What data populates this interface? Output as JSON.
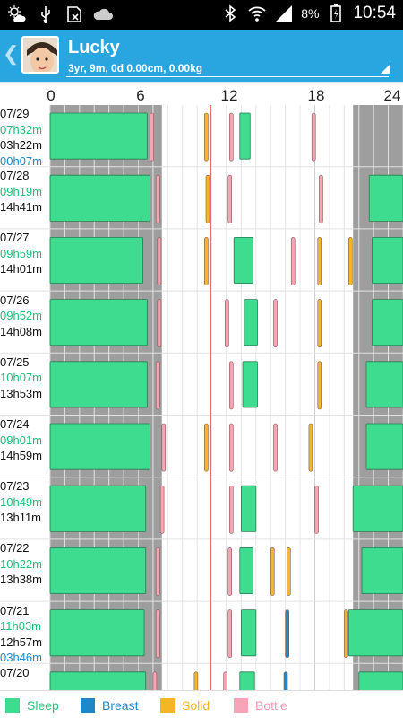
{
  "status_bar": {
    "battery_percent": "8%",
    "time": "10:54",
    "icons": [
      "weather-icon",
      "usb-icon",
      "sim-blocked-icon",
      "cloud-icon",
      "bluetooth-icon",
      "wifi-icon",
      "signal-icon",
      "battery-charging-icon"
    ]
  },
  "header": {
    "name": "Lucky",
    "details": "3yr, 9m, 0d 0.00cm, 0.00kg",
    "color": "#29a6e0"
  },
  "axis": {
    "ticks": [
      "0",
      "6",
      "12",
      "18",
      "24"
    ]
  },
  "colors": {
    "sleep": "#3ddc8e",
    "breast": "#1e88c7",
    "solid": "#f4b624",
    "bottle": "#f7a3b8",
    "night_shade": "#9e9e9e"
  },
  "legend": [
    {
      "label": "Sleep",
      "color": "#3ddc8e",
      "text_color": "#2fbf7a"
    },
    {
      "label": "Breast",
      "color": "#1e88c7",
      "text_color": "#1e88c7"
    },
    {
      "label": "Solid",
      "color": "#f4b624",
      "text_color": "#f4b624"
    },
    {
      "label": "Bottle",
      "color": "#f7a3b8",
      "text_color": "#f59ab0"
    }
  ],
  "days": [
    {
      "date": "07/29",
      "sleep_total": "07h32m",
      "mid": "03h22m",
      "breast_total": "00h07m",
      "events": [
        {
          "type": "sleep",
          "start": 0,
          "end": 6.6
        },
        {
          "type": "bottle",
          "start": 6.8,
          "end": 7.0
        },
        {
          "type": "solid",
          "start": 10.5,
          "end": 10.7
        },
        {
          "type": "bottle",
          "start": 12.2,
          "end": 12.4
        },
        {
          "type": "sleep",
          "start": 12.9,
          "end": 13.6
        },
        {
          "type": "bottle",
          "start": 17.8,
          "end": 18.0
        }
      ]
    },
    {
      "date": "07/28",
      "sleep_total": "09h19m",
      "mid": "14h41m",
      "breast_total": "",
      "events": [
        {
          "type": "sleep",
          "start": 0,
          "end": 6.8
        },
        {
          "type": "bottle",
          "start": 7.2,
          "end": 7.4
        },
        {
          "type": "solid",
          "start": 10.6,
          "end": 10.8
        },
        {
          "type": "bottle",
          "start": 12.1,
          "end": 12.3
        },
        {
          "type": "bottle",
          "start": 18.3,
          "end": 18.5
        },
        {
          "type": "sleep",
          "start": 21.7,
          "end": 24
        }
      ]
    },
    {
      "date": "07/27",
      "sleep_total": "09h59m",
      "mid": "14h01m",
      "breast_total": "",
      "events": [
        {
          "type": "sleep",
          "start": 0,
          "end": 6.3
        },
        {
          "type": "bottle",
          "start": 7.3,
          "end": 7.5
        },
        {
          "type": "solid",
          "start": 10.5,
          "end": 10.7
        },
        {
          "type": "sleep",
          "start": 12.5,
          "end": 13.8
        },
        {
          "type": "bottle",
          "start": 16.4,
          "end": 16.6
        },
        {
          "type": "solid",
          "start": 18.2,
          "end": 18.4
        },
        {
          "type": "solid",
          "start": 20.3,
          "end": 20.5
        },
        {
          "type": "sleep",
          "start": 21.9,
          "end": 24
        }
      ]
    },
    {
      "date": "07/26",
      "sleep_total": "09h52m",
      "mid": "14h08m",
      "breast_total": "",
      "events": [
        {
          "type": "sleep",
          "start": 0,
          "end": 6.6
        },
        {
          "type": "bottle",
          "start": 7.3,
          "end": 7.5
        },
        {
          "type": "bottle",
          "start": 11.9,
          "end": 12.1
        },
        {
          "type": "sleep",
          "start": 13.2,
          "end": 14.1
        },
        {
          "type": "bottle",
          "start": 15.2,
          "end": 15.4
        },
        {
          "type": "solid",
          "start": 18.2,
          "end": 18.4
        },
        {
          "type": "sleep",
          "start": 21.9,
          "end": 24
        }
      ]
    },
    {
      "date": "07/25",
      "sleep_total": "10h07m",
      "mid": "13h53m",
      "breast_total": "",
      "events": [
        {
          "type": "sleep",
          "start": 0,
          "end": 6.6
        },
        {
          "type": "bottle",
          "start": 7.2,
          "end": 7.4
        },
        {
          "type": "bottle",
          "start": 12.2,
          "end": 12.4
        },
        {
          "type": "sleep",
          "start": 13.1,
          "end": 14.1
        },
        {
          "type": "solid",
          "start": 18.2,
          "end": 18.4
        },
        {
          "type": "sleep",
          "start": 21.5,
          "end": 24
        }
      ]
    },
    {
      "date": "07/24",
      "sleep_total": "09h01m",
      "mid": "14h59m",
      "breast_total": "",
      "events": [
        {
          "type": "sleep",
          "start": 0,
          "end": 6.8
        },
        {
          "type": "bottle",
          "start": 7.6,
          "end": 7.8
        },
        {
          "type": "solid",
          "start": 10.5,
          "end": 10.7
        },
        {
          "type": "bottle",
          "start": 12.2,
          "end": 12.4
        },
        {
          "type": "bottle",
          "start": 15.2,
          "end": 15.4
        },
        {
          "type": "solid",
          "start": 17.6,
          "end": 17.8
        },
        {
          "type": "sleep",
          "start": 21.5,
          "end": 24
        }
      ]
    },
    {
      "date": "07/23",
      "sleep_total": "10h49m",
      "mid": "13h11m",
      "breast_total": "",
      "events": [
        {
          "type": "sleep",
          "start": 0,
          "end": 6.5
        },
        {
          "type": "bottle",
          "start": 7.5,
          "end": 7.7
        },
        {
          "type": "bottle",
          "start": 12.2,
          "end": 12.4
        },
        {
          "type": "sleep",
          "start": 13.0,
          "end": 14.0
        },
        {
          "type": "bottle",
          "start": 18.0,
          "end": 18.2
        },
        {
          "type": "sleep",
          "start": 20.6,
          "end": 24
        }
      ]
    },
    {
      "date": "07/22",
      "sleep_total": "10h22m",
      "mid": "13h38m",
      "breast_total": "",
      "events": [
        {
          "type": "sleep",
          "start": 0,
          "end": 6.5
        },
        {
          "type": "bottle",
          "start": 7.2,
          "end": 7.4
        },
        {
          "type": "bottle",
          "start": 12.1,
          "end": 12.3
        },
        {
          "type": "sleep",
          "start": 12.9,
          "end": 13.8
        },
        {
          "type": "solid",
          "start": 15.0,
          "end": 15.2
        },
        {
          "type": "solid",
          "start": 16.1,
          "end": 16.3
        },
        {
          "type": "sleep",
          "start": 21.2,
          "end": 24
        }
      ]
    },
    {
      "date": "07/21",
      "sleep_total": "11h03m",
      "mid": "12h57m",
      "breast_total": "03h46m",
      "events": [
        {
          "type": "sleep",
          "start": 0,
          "end": 6.4
        },
        {
          "type": "bottle",
          "start": 7.2,
          "end": 7.4
        },
        {
          "type": "bottle",
          "start": 12.1,
          "end": 12.3
        },
        {
          "type": "sleep",
          "start": 13.0,
          "end": 14.0
        },
        {
          "type": "breast",
          "start": 16.0,
          "end": 16.2
        },
        {
          "type": "solid",
          "start": 20.0,
          "end": 20.2
        },
        {
          "type": "sleep",
          "start": 20.3,
          "end": 24
        }
      ]
    },
    {
      "date": "07/20",
      "sleep_total": "",
      "mid": "",
      "breast_total": "",
      "events": [
        {
          "type": "sleep",
          "start": 0,
          "end": 6.5
        },
        {
          "type": "bottle",
          "start": 7.0,
          "end": 7.2
        },
        {
          "type": "solid",
          "start": 9.8,
          "end": 10.0
        },
        {
          "type": "bottle",
          "start": 11.8,
          "end": 12.0
        },
        {
          "type": "sleep",
          "start": 12.9,
          "end": 13.9
        },
        {
          "type": "breast",
          "start": 15.9,
          "end": 16.1
        },
        {
          "type": "sleep",
          "start": 21.0,
          "end": 24
        }
      ]
    }
  ]
}
